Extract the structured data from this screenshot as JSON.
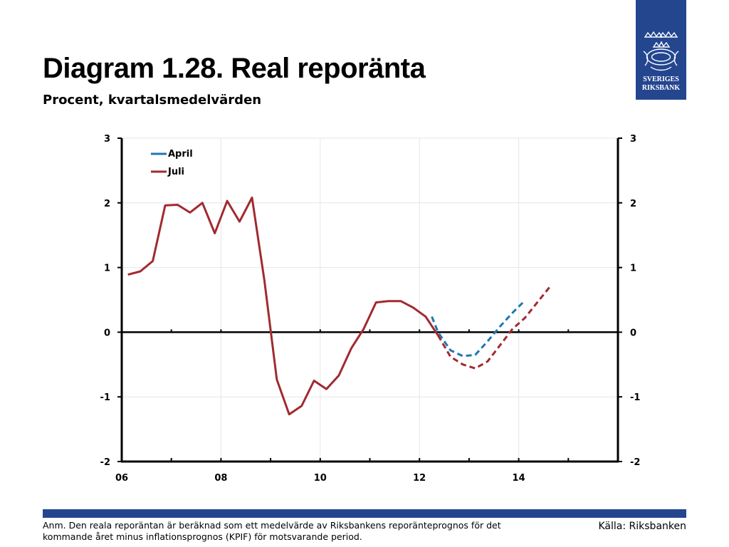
{
  "header": {
    "title": "Diagram 1.28. Real reporänta",
    "subtitle": "Procent, kvartalsmedelvärden"
  },
  "logo": {
    "line1": "SVERIGES",
    "line2": "RIKSBANK",
    "color": "#24468f"
  },
  "footer": {
    "note": "Anm. Den reala reporäntan är beräknad som ett medelvärde av Riksbankens reporänteprognos för det kommande året minus inflationsprognos (KPIF) för motsvarande period.",
    "source": "Källa: Riksbanken",
    "bar_color": "#24468f"
  },
  "chart_data": {
    "type": "line",
    "title": "Diagram 1.28. Real reporänta",
    "subtitle": "Procent, kvartalsmedelvärden",
    "xlabel": "",
    "ylabel": "",
    "x_range": [
      2006,
      2016
    ],
    "ylim": [
      -2,
      3
    ],
    "x_ticks": [
      {
        "value": 2006,
        "label": "06"
      },
      {
        "value": 2008,
        "label": "08"
      },
      {
        "value": 2010,
        "label": "10"
      },
      {
        "value": 2012,
        "label": "12"
      },
      {
        "value": 2014,
        "label": "14"
      }
    ],
    "y_ticks": [
      {
        "value": 3,
        "label": "3"
      },
      {
        "value": 2,
        "label": "2"
      },
      {
        "value": 1,
        "label": "1"
      },
      {
        "value": 0,
        "label": "0"
      },
      {
        "value": -1,
        "label": "-1"
      },
      {
        "value": -2,
        "label": "-2"
      }
    ],
    "grid": true,
    "legend_position": "top-left",
    "series": [
      {
        "name": "April",
        "color": "#1f77b4",
        "dashed_from_x": 2012.25,
        "points": [
          [
            2012.25,
            0.24
          ],
          [
            2012.375,
            0.0
          ],
          [
            2012.625,
            -0.28
          ],
          [
            2012.875,
            -0.37
          ],
          [
            2013.125,
            -0.35
          ],
          [
            2013.375,
            -0.14
          ],
          [
            2013.625,
            0.09
          ],
          [
            2013.875,
            0.3
          ],
          [
            2014.125,
            0.49
          ]
        ]
      },
      {
        "name": "Juli",
        "color": "#a12a2f",
        "dashed_from_x": 2012.375,
        "points": [
          [
            2006.125,
            0.89
          ],
          [
            2006.375,
            0.94
          ],
          [
            2006.625,
            1.1
          ],
          [
            2006.875,
            1.96
          ],
          [
            2007.125,
            1.97
          ],
          [
            2007.375,
            1.85
          ],
          [
            2007.625,
            2.0
          ],
          [
            2007.875,
            1.53
          ],
          [
            2008.125,
            2.03
          ],
          [
            2008.375,
            1.71
          ],
          [
            2008.625,
            2.08
          ],
          [
            2008.875,
            0.8
          ],
          [
            2009.125,
            -0.73
          ],
          [
            2009.375,
            -1.27
          ],
          [
            2009.625,
            -1.14
          ],
          [
            2009.875,
            -0.75
          ],
          [
            2010.125,
            -0.88
          ],
          [
            2010.375,
            -0.67
          ],
          [
            2010.625,
            -0.25
          ],
          [
            2010.875,
            0.05
          ],
          [
            2011.125,
            0.46
          ],
          [
            2011.375,
            0.48
          ],
          [
            2011.625,
            0.48
          ],
          [
            2011.875,
            0.38
          ],
          [
            2012.125,
            0.24
          ],
          [
            2012.375,
            -0.05
          ],
          [
            2012.625,
            -0.38
          ],
          [
            2012.875,
            -0.5
          ],
          [
            2013.125,
            -0.56
          ],
          [
            2013.375,
            -0.45
          ],
          [
            2013.625,
            -0.2
          ],
          [
            2013.875,
            0.05
          ],
          [
            2014.125,
            0.22
          ],
          [
            2014.375,
            0.46
          ],
          [
            2014.625,
            0.7
          ]
        ]
      }
    ]
  }
}
